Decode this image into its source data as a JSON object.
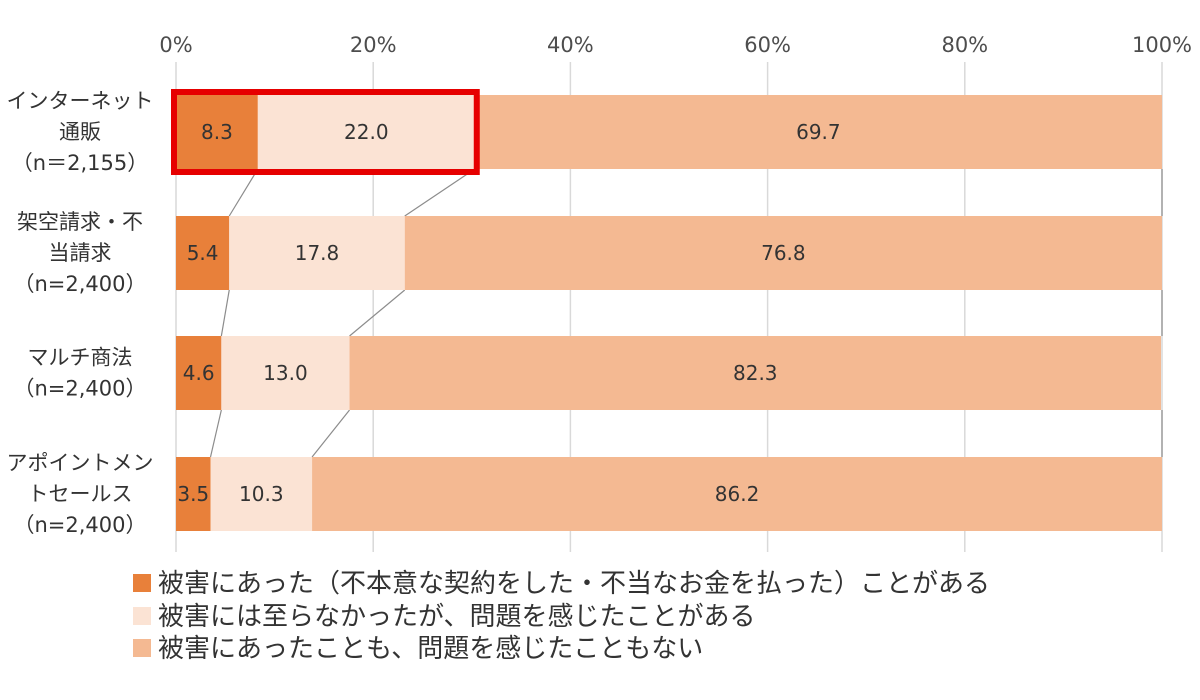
{
  "chart_data": {
    "type": "bar",
    "orientation": "horizontal",
    "stacked": "percent",
    "categories": [
      [
        "インターネット",
        "通販",
        "（n＝2,155）"
      ],
      [
        "架空請求・不",
        "当請求",
        "（n=2,400）"
      ],
      [
        "マルチ商法",
        "（n=2,400）"
      ],
      [
        "アポイントメン",
        "トセールス",
        "（n=2,400）"
      ]
    ],
    "series": [
      {
        "name": "被害にあった（不本意な契約をした・不当なお金を払った）ことがある",
        "values": [
          8.3,
          5.4,
          4.6,
          3.5
        ],
        "labels": [
          "8.3",
          "5.4",
          "4.6",
          "3.5"
        ],
        "color": "#e8803a"
      },
      {
        "name": "被害には至らなかったが、問題を感じたことがある",
        "values": [
          22.0,
          17.8,
          13.0,
          10.3
        ],
        "labels": [
          "22.0",
          "17.8",
          "13.0",
          "10.3"
        ],
        "color": "#fbe3d4"
      },
      {
        "name": "被害にあったことも、問題を感じたこともない",
        "values": [
          69.7,
          76.8,
          82.3,
          86.2
        ],
        "labels": [
          "69.7",
          "76.8",
          "82.3",
          "86.2"
        ],
        "color": "#f4b992"
      }
    ],
    "xlim": [
      0,
      100
    ],
    "xticks": [
      "0%",
      "20%",
      "40%",
      "60%",
      "80%",
      "100%"
    ],
    "grid": true,
    "legend_position": "bottom",
    "highlight": {
      "category_index": 0,
      "series_count": 2,
      "color": "#e60000"
    },
    "series_lines": true
  }
}
